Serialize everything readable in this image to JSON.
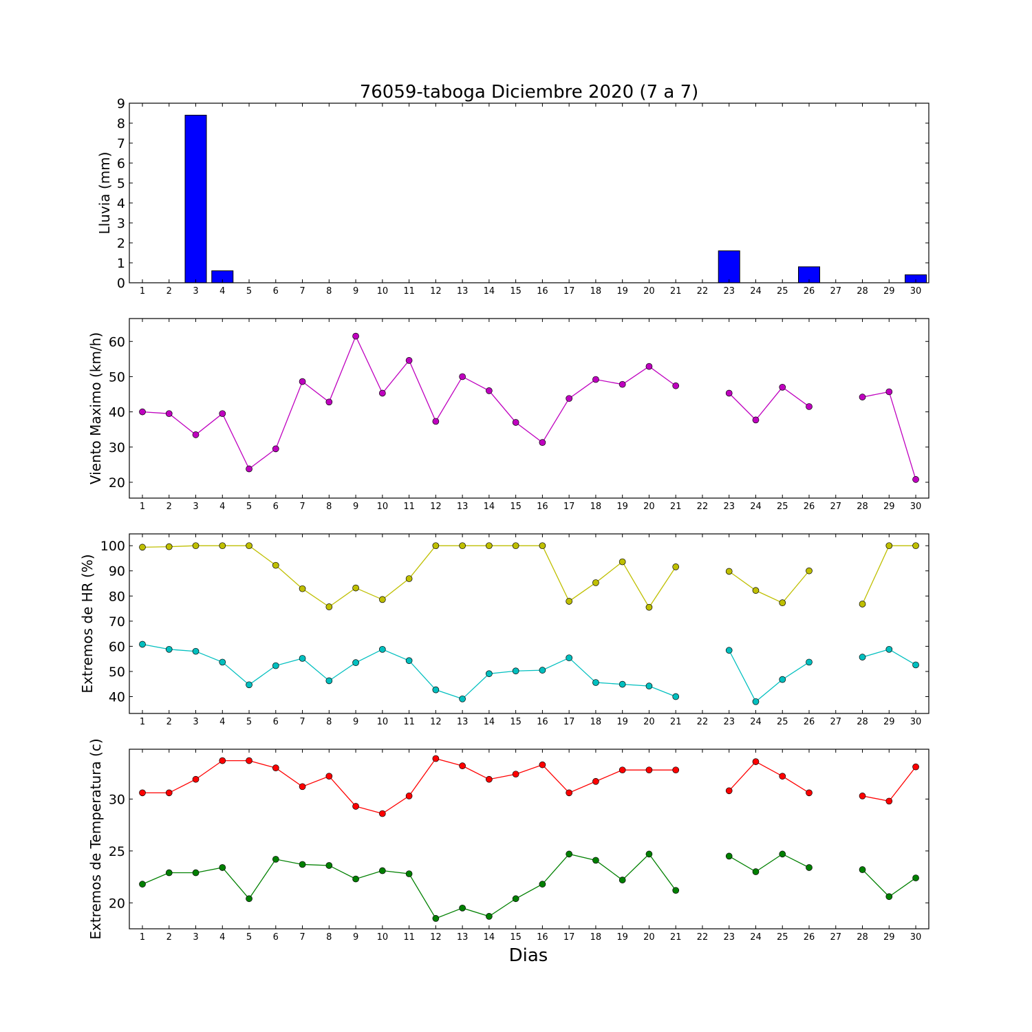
{
  "title": "76059-taboga Diciembre 2020  (7 a 7)",
  "xlabel": "Dias",
  "colors": {
    "rain": "#0000ff",
    "wind": "#bf00bf",
    "hr_max": "#bfbf00",
    "hr_min": "#00bfbf",
    "temp_max": "#ff0000",
    "temp_min": "#008000"
  },
  "chart_data": [
    {
      "type": "bar",
      "ylabel": "Lluvia (mm)",
      "ylim": [
        0,
        9
      ],
      "yticks": [
        0,
        1,
        2,
        3,
        4,
        5,
        6,
        7,
        8,
        9
      ],
      "categories": [
        "1",
        "2",
        "3",
        "4",
        "5",
        "6",
        "7",
        "8",
        "9",
        "10",
        "11",
        "12",
        "13",
        "14",
        "15",
        "16",
        "17",
        "18",
        "19",
        "20",
        "21",
        "22",
        "23",
        "24",
        "25",
        "26",
        "27",
        "28",
        "29",
        "30"
      ],
      "values": [
        0,
        0,
        8.4,
        0.6,
        0,
        0,
        0,
        0,
        0,
        0,
        0,
        0,
        0,
        0,
        0,
        0,
        0,
        0,
        0,
        0,
        0,
        null,
        1.6,
        0,
        0,
        0.8,
        null,
        0,
        0,
        0.4
      ]
    },
    {
      "type": "line",
      "ylabel": "Viento Maximo (km/h)",
      "ylim": [
        15.5,
        66.5
      ],
      "yticks": [
        20,
        30,
        40,
        50,
        60
      ],
      "categories": [
        "1",
        "2",
        "3",
        "4",
        "5",
        "6",
        "7",
        "8",
        "9",
        "10",
        "11",
        "12",
        "13",
        "14",
        "15",
        "16",
        "17",
        "18",
        "19",
        "20",
        "21",
        "22",
        "23",
        "24",
        "25",
        "26",
        "27",
        "28",
        "29",
        "30"
      ],
      "series": [
        {
          "values": [
            40.0,
            39.5,
            33.5,
            39.5,
            23.8,
            29.5,
            48.6,
            42.8,
            61.5,
            45.3,
            54.6,
            37.3,
            50.0,
            46.0,
            37.0,
            31.3,
            43.8,
            49.2,
            47.8,
            52.9,
            47.4,
            null,
            45.3,
            37.7,
            47.0,
            41.5,
            null,
            44.2,
            45.7,
            20.8
          ]
        }
      ]
    },
    {
      "type": "line",
      "ylabel": "Extremos de HR (%)",
      "ylim": [
        33.3,
        104.7
      ],
      "yticks": [
        40,
        50,
        60,
        70,
        80,
        90,
        100
      ],
      "categories": [
        "1",
        "2",
        "3",
        "4",
        "5",
        "6",
        "7",
        "8",
        "9",
        "10",
        "11",
        "12",
        "13",
        "14",
        "15",
        "16",
        "17",
        "18",
        "19",
        "20",
        "21",
        "22",
        "23",
        "24",
        "25",
        "26",
        "27",
        "28",
        "29",
        "30"
      ],
      "series": [
        {
          "values": [
            99.4,
            99.6,
            100,
            100,
            100,
            92.2,
            82.9,
            75.7,
            83.2,
            78.6,
            86.9,
            100,
            100,
            100,
            100,
            100,
            77.9,
            85.3,
            93.6,
            75.5,
            91.6,
            null,
            89.8,
            82.2,
            77.3,
            90.0,
            null,
            76.8,
            100,
            100
          ]
        },
        {
          "values": [
            60.8,
            58.8,
            58.0,
            53.7,
            44.7,
            52.3,
            55.2,
            46.3,
            53.5,
            58.8,
            54.3,
            42.7,
            39.1,
            49.1,
            50.2,
            50.5,
            55.4,
            45.6,
            44.9,
            44.2,
            40.0,
            null,
            58.4,
            38.0,
            46.8,
            53.7,
            null,
            55.7,
            58.8,
            52.6
          ]
        }
      ]
    },
    {
      "type": "line",
      "ylabel": "Extremos de Temperatura (c)",
      "ylim": [
        17.5,
        34.8
      ],
      "yticks": [
        20,
        25,
        30
      ],
      "categories": [
        "1",
        "2",
        "3",
        "4",
        "5",
        "6",
        "7",
        "8",
        "9",
        "10",
        "11",
        "12",
        "13",
        "14",
        "15",
        "16",
        "17",
        "18",
        "19",
        "20",
        "21",
        "22",
        "23",
        "24",
        "25",
        "26",
        "27",
        "28",
        "29",
        "30"
      ],
      "series": [
        {
          "values": [
            30.6,
            30.6,
            31.9,
            33.7,
            33.7,
            33.0,
            31.2,
            32.2,
            29.3,
            28.6,
            30.3,
            33.9,
            33.2,
            31.9,
            32.4,
            33.3,
            30.6,
            31.7,
            32.8,
            32.8,
            32.8,
            null,
            30.8,
            33.6,
            32.2,
            30.6,
            null,
            30.3,
            29.8,
            33.1
          ]
        },
        {
          "values": [
            21.8,
            22.9,
            22.9,
            23.4,
            20.4,
            24.2,
            23.7,
            23.6,
            22.3,
            23.1,
            22.8,
            18.5,
            19.5,
            18.7,
            20.4,
            21.8,
            24.7,
            24.1,
            22.2,
            24.7,
            21.2,
            null,
            24.5,
            23.0,
            24.7,
            23.4,
            null,
            23.2,
            20.6,
            22.4
          ]
        }
      ]
    }
  ]
}
